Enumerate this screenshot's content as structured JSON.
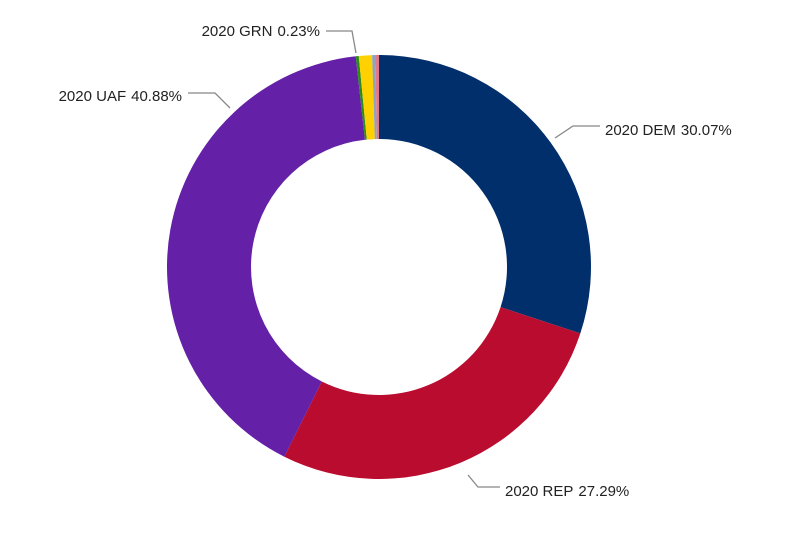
{
  "chart_data": {
    "type": "donut",
    "categories": [
      "2020 DEM",
      "2020 REP",
      "2020 UAF",
      "2020 GRN",
      null,
      null,
      null
    ],
    "values": [
      30.07,
      27.29,
      40.88,
      0.23,
      1.0,
      0.25,
      0.27
    ],
    "value_labels": [
      "30.07%",
      "27.29%",
      "40.88%",
      "0.23%",
      null,
      null,
      null
    ],
    "colors": [
      "#002f6c",
      "#ba0c2f",
      "#6420a6",
      "#2e8b1e",
      "#ffd100",
      "#8fa3bd",
      "#e07a8a"
    ]
  }
}
